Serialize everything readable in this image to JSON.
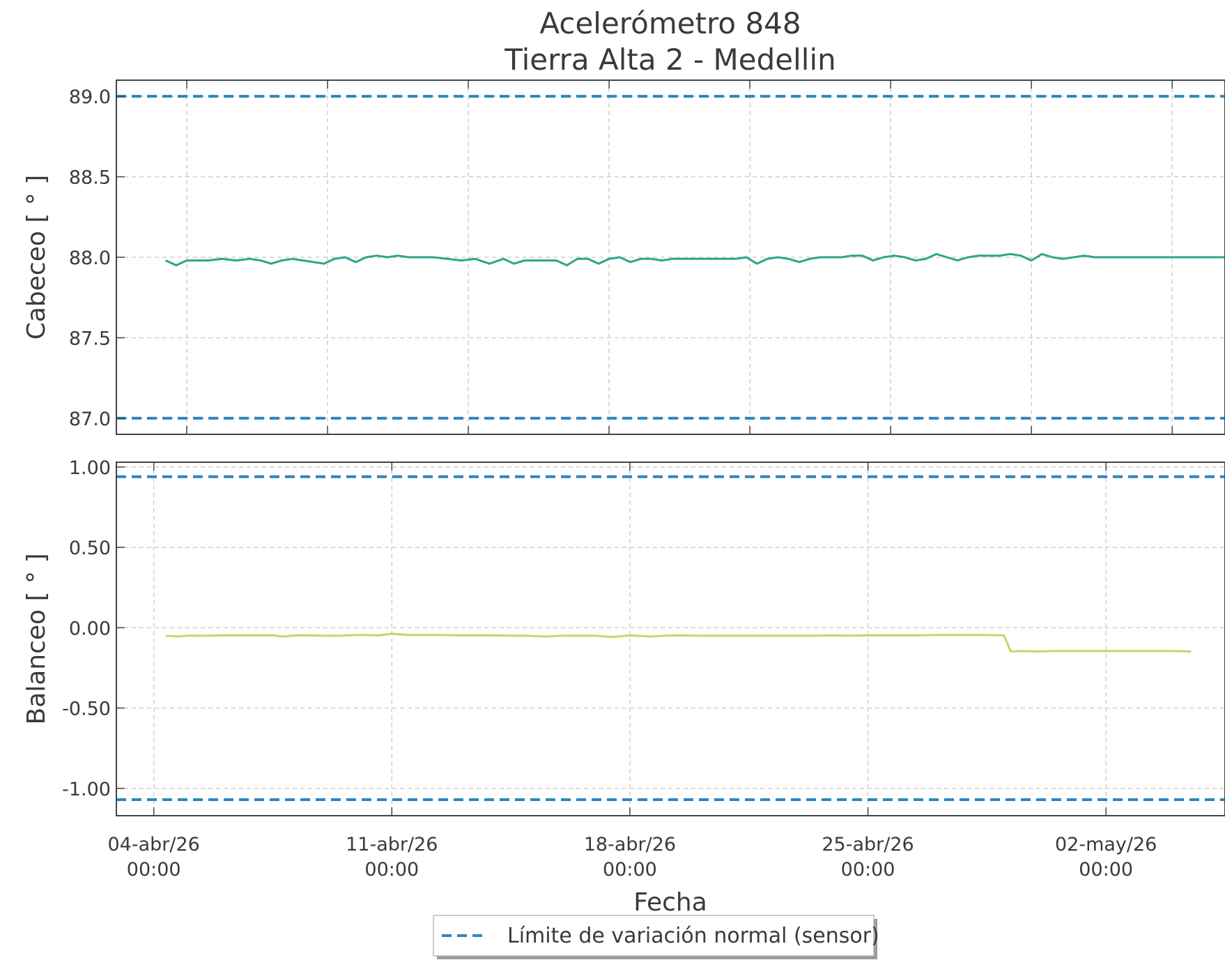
{
  "figure": {
    "title_line1": "Acelerómetro 848",
    "title_line2": "Tierra Alta 2 - Medellin",
    "xlabel": "Fecha",
    "legend_label": "Límite de variación normal (sensor)"
  },
  "colors": {
    "limit": "#2e86c1",
    "cabeceo": "#2ca58d",
    "balanceo": "#c9d36a",
    "grid": "#cfcfcf",
    "axis": "#444444"
  },
  "chart_data": [
    {
      "type": "line",
      "ylabel": "Cabeceo [ ° ]",
      "ylim": [
        86.9,
        89.1
      ],
      "yticks": [
        89.0,
        88.5,
        88.0,
        87.5,
        87.0
      ],
      "ytick_labels": [
        "89.0",
        "88.5",
        "88.0",
        "87.5",
        "87.0"
      ],
      "xlim": [
        0.0,
        31.5
      ],
      "xticks": [
        2,
        6,
        10,
        14,
        18,
        22,
        26,
        30
      ],
      "grid": true,
      "limits": [
        89.0,
        87.0
      ],
      "series": [
        {
          "x": [
            1.4,
            1.7,
            2.0,
            2.3,
            2.6,
            3.0,
            3.4,
            3.8,
            4.1,
            4.4,
            4.7,
            5.0,
            5.3,
            5.6,
            5.9,
            6.2,
            6.5,
            6.8,
            7.1,
            7.4,
            7.7,
            8.0,
            8.3,
            8.6,
            9.0,
            9.4,
            9.8,
            10.2,
            10.6,
            11.0,
            11.3,
            11.6,
            11.9,
            12.2,
            12.5,
            12.8,
            13.1,
            13.4,
            13.7,
            14.0,
            14.3,
            14.6,
            14.9,
            15.2,
            15.5,
            15.8,
            16.1,
            16.4,
            16.7,
            17.0,
            17.3,
            17.6,
            17.9,
            18.2,
            18.5,
            18.8,
            19.1,
            19.4,
            19.7,
            20.0,
            20.3,
            20.6,
            20.9,
            21.2,
            21.5,
            21.8,
            22.1,
            22.4,
            22.7,
            23.0,
            23.3,
            23.6,
            23.9,
            24.2,
            24.5,
            24.8,
            25.1,
            25.4,
            25.7,
            26.0,
            26.3,
            26.6,
            26.9,
            27.2,
            27.5,
            27.8,
            28.1,
            28.4,
            28.7,
            29.0,
            29.3,
            29.6,
            29.9,
            30.2,
            30.5,
            30.8,
            31.1,
            31.4,
            31.7,
            32.0,
            32.3,
            32.6
          ],
          "values": [
            87.98,
            87.95,
            87.98,
            87.98,
            87.98,
            87.99,
            87.98,
            87.99,
            87.98,
            87.96,
            87.98,
            87.99,
            87.98,
            87.97,
            87.96,
            87.99,
            88.0,
            87.97,
            88.0,
            88.01,
            88.0,
            88.01,
            88.0,
            88.0,
            88.0,
            87.99,
            87.98,
            87.99,
            87.96,
            87.99,
            87.96,
            87.98,
            87.98,
            87.98,
            87.98,
            87.95,
            87.99,
            87.99,
            87.96,
            87.99,
            88.0,
            87.97,
            87.99,
            87.99,
            87.98,
            87.99,
            87.99,
            87.99,
            87.99,
            87.99,
            87.99,
            87.99,
            88.0,
            87.96,
            87.99,
            88.0,
            87.99,
            87.97,
            87.99,
            88.0,
            88.0,
            88.0,
            88.01,
            88.01,
            87.98,
            88.0,
            88.01,
            88.0,
            87.98,
            87.99,
            88.02,
            88.0,
            87.98,
            88.0,
            88.01,
            88.01,
            88.01,
            88.02,
            88.01,
            87.98,
            88.02,
            88.0,
            87.99,
            88.0,
            88.01,
            88.0,
            88.0,
            88.0,
            88.0,
            88.0,
            88.0,
            88.0,
            88.0,
            88.0,
            88.0,
            88.0,
            88.0,
            88.0,
            88.0,
            88.0,
            88.0,
            88.0
          ],
          "color": "#2ca58d"
        }
      ]
    },
    {
      "type": "line",
      "ylabel": "Balanceo [ ° ]",
      "ylim": [
        -1.17,
        1.03
      ],
      "yticks": [
        1.0,
        0.5,
        0.0,
        -0.5,
        -1.0
      ],
      "ytick_labels": [
        "1.00",
        "0.50",
        "0.00",
        "-0.50",
        "-1.00"
      ],
      "xlim": [
        -1.1,
        31.5
      ],
      "xticks": [
        0,
        7,
        14,
        21,
        28
      ],
      "xtick_labels": [
        [
          "04-abr/26",
          "00:00"
        ],
        [
          "11-abr/26",
          "00:00"
        ],
        [
          "18-abr/26",
          "00:00"
        ],
        [
          "25-abr/26",
          "00:00"
        ],
        [
          "02-may/26",
          "00:00"
        ]
      ],
      "grid": true,
      "limits": [
        0.94,
        -1.07
      ],
      "series": [
        {
          "x": [
            0.35,
            0.7,
            1.0,
            1.5,
            2.0,
            2.5,
            3.0,
            3.5,
            3.8,
            4.2,
            4.6,
            5.0,
            5.5,
            6.0,
            6.2,
            6.6,
            7.0,
            7.5,
            8.0,
            8.5,
            9.0,
            9.5,
            10.0,
            10.5,
            11.0,
            11.5,
            12.0,
            12.5,
            13.0,
            13.5,
            14.0,
            14.6,
            15.0,
            15.5,
            16.0,
            16.5,
            17.0,
            17.5,
            18.0,
            18.5,
            19.0,
            19.5,
            20.0,
            20.5,
            21.0,
            21.5,
            22.0,
            22.5,
            23.0,
            23.5,
            24.0,
            24.5,
            25.0,
            25.2,
            25.5,
            26.0,
            26.5,
            27.0,
            27.5,
            28.0,
            28.5,
            29.0,
            29.5,
            30.0,
            30.5
          ],
          "values": [
            -0.05,
            -0.055,
            -0.05,
            -0.05,
            -0.048,
            -0.048,
            -0.048,
            -0.048,
            -0.055,
            -0.048,
            -0.048,
            -0.05,
            -0.05,
            -0.045,
            -0.045,
            -0.048,
            -0.038,
            -0.045,
            -0.045,
            -0.045,
            -0.048,
            -0.048,
            -0.048,
            -0.05,
            -0.05,
            -0.055,
            -0.05,
            -0.05,
            -0.05,
            -0.058,
            -0.048,
            -0.055,
            -0.05,
            -0.048,
            -0.05,
            -0.05,
            -0.05,
            -0.05,
            -0.05,
            -0.05,
            -0.05,
            -0.05,
            -0.048,
            -0.05,
            -0.048,
            -0.048,
            -0.048,
            -0.048,
            -0.045,
            -0.045,
            -0.045,
            -0.045,
            -0.048,
            -0.148,
            -0.145,
            -0.148,
            -0.145,
            -0.145,
            -0.145,
            -0.145,
            -0.145,
            -0.145,
            -0.145,
            -0.145,
            -0.148
          ],
          "color": "#c9d36a"
        }
      ]
    }
  ]
}
